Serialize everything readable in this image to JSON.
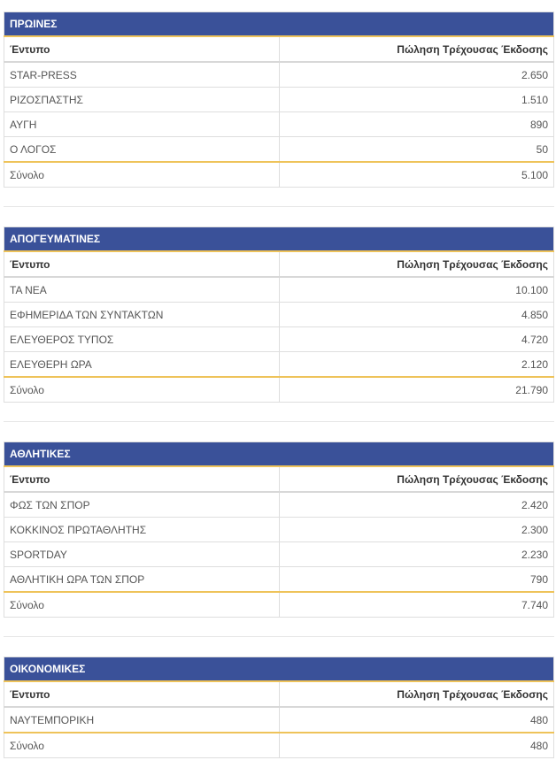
{
  "colors": {
    "header_bg": "#3a5199",
    "accent": "#eec35a"
  },
  "sections": [
    {
      "title": "ΠΡΩΙΝΕΣ",
      "col1": "Έντυπο",
      "col2": "Πώληση Τρέχουσας Έκδοσης",
      "rows": [
        {
          "name": "STAR-PRESS",
          "value": "2.650"
        },
        {
          "name": "ΡΙΖΟΣΠΑΣΤΗΣ",
          "value": "1.510"
        },
        {
          "name": "ΑΥΓΗ",
          "value": "890"
        },
        {
          "name": "Ο ΛΟΓΟΣ",
          "value": "50"
        }
      ],
      "total_label": "Σύνολο",
      "total_value": "5.100"
    },
    {
      "title": "ΑΠΟΓΕΥΜΑΤΙΝΕΣ",
      "col1": "Έντυπο",
      "col2": "Πώληση Τρέχουσας Έκδοσης",
      "rows": [
        {
          "name": "ΤΑ ΝΕΑ",
          "value": "10.100"
        },
        {
          "name": "ΕΦΗΜΕΡΙΔΑ ΤΩΝ ΣΥΝΤΑΚΤΩΝ",
          "value": "4.850"
        },
        {
          "name": "ΕΛΕΥΘΕΡΟΣ ΤΥΠΟΣ",
          "value": "4.720"
        },
        {
          "name": "ΕΛΕΥΘΕΡΗ ΩΡΑ",
          "value": "2.120"
        }
      ],
      "total_label": "Σύνολο",
      "total_value": "21.790"
    },
    {
      "title": "ΑΘΛΗΤΙΚΕΣ",
      "col1": "Έντυπο",
      "col2": "Πώληση Τρέχουσας Έκδοσης",
      "rows": [
        {
          "name": "ΦΩΣ ΤΩΝ ΣΠΟΡ",
          "value": "2.420"
        },
        {
          "name": "ΚΟΚΚΙΝΟΣ ΠΡΩΤΑΘΛΗΤΗΣ",
          "value": "2.300"
        },
        {
          "name": "SPORTDAY",
          "value": "2.230"
        },
        {
          "name": "ΑΘΛΗΤΙΚΗ ΩΡΑ ΤΩΝ ΣΠΟΡ",
          "value": "790"
        }
      ],
      "total_label": "Σύνολο",
      "total_value": "7.740"
    },
    {
      "title": "ΟΙΚΟΝΟΜΙΚΕΣ",
      "col1": "Έντυπο",
      "col2": "Πώληση Τρέχουσας Έκδοσης",
      "rows": [
        {
          "name": "ΝΑΥΤΕΜΠΟΡΙΚΗ",
          "value": "480"
        }
      ],
      "total_label": "Σύνολο",
      "total_value": "480"
    }
  ]
}
